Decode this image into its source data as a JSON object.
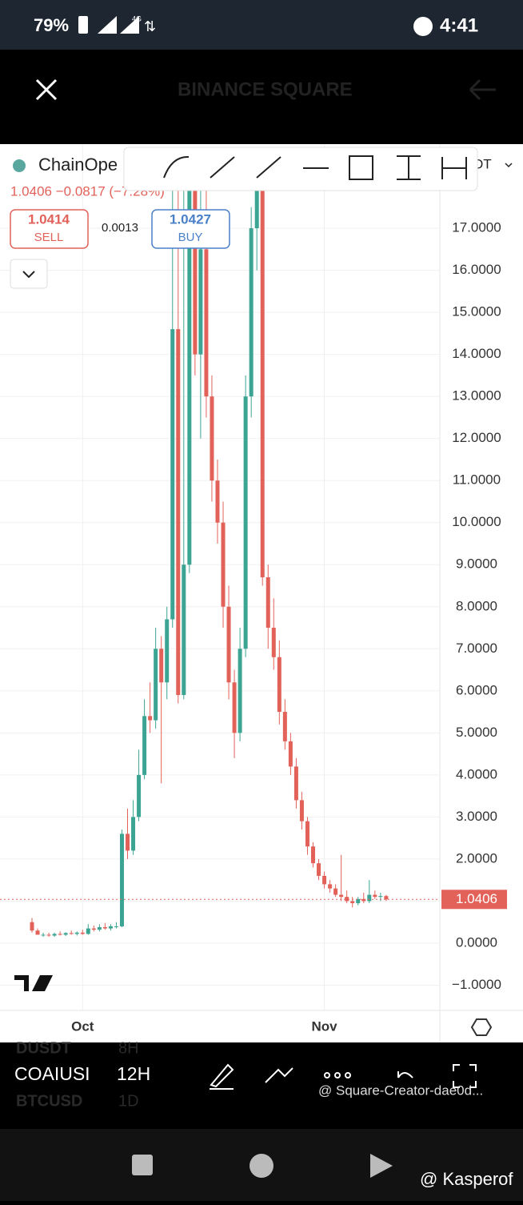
{
  "status_bar": {
    "battery": "79%",
    "network": "4G",
    "time": "4:41"
  },
  "header": {
    "title": "BINANCE SQUARE"
  },
  "symbol": {
    "name": "ChainOpe",
    "pair_suffix": "DT",
    "quote": "1.0406 −0.0817 (−7.28%)",
    "sell_price": "1.0414",
    "sell_label": "SELL",
    "spread": "0.0013",
    "buy_price": "1.0427",
    "buy_label": "BUY"
  },
  "chart_data": {
    "type": "candlestick",
    "categories": [
      null,
      null,
      null,
      null,
      null,
      null,
      null,
      null,
      null,
      "Oct",
      null,
      null,
      null,
      null,
      null,
      null,
      null,
      null,
      null,
      null,
      null,
      null,
      null,
      null,
      null,
      null,
      null,
      null,
      null,
      null,
      null,
      null,
      null,
      null,
      null,
      null,
      null,
      null,
      null,
      null,
      null,
      null,
      null,
      null,
      null,
      null,
      null,
      null,
      null,
      null,
      null,
      null,
      "Nov",
      null,
      null,
      null,
      null,
      null,
      null,
      null,
      null,
      null,
      null,
      null
    ],
    "open": [
      0.5,
      0.3,
      0.2,
      0.2,
      0.18,
      0.22,
      0.2,
      0.24,
      0.22,
      0.25,
      0.22,
      0.35,
      0.32,
      0.38,
      0.35,
      0.4,
      0.4,
      2.6,
      2.2,
      3.0,
      4.0,
      5.4,
      5.3,
      7.0,
      6.2,
      7.7,
      14.6,
      5.9,
      9.0,
      18.0,
      14.0,
      16.5,
      13.0,
      11.0,
      10.0,
      8.0,
      6.2,
      5.0,
      7.0,
      13.0,
      17.0,
      18.5,
      8.7,
      7.5,
      6.8,
      5.5,
      4.8,
      4.2,
      3.4,
      2.9,
      2.3,
      1.9,
      1.6,
      1.4,
      1.3,
      1.15,
      1.1,
      1.0,
      0.95,
      1.05,
      1.0,
      1.15,
      1.1,
      1.12
    ],
    "high": [
      0.6,
      0.35,
      0.25,
      0.25,
      0.25,
      0.28,
      0.26,
      0.3,
      0.28,
      0.32,
      0.45,
      0.42,
      0.45,
      0.48,
      0.45,
      0.5,
      2.7,
      3.2,
      3.4,
      4.6,
      5.8,
      6.2,
      7.5,
      7.3,
      8.0,
      18.5,
      18.6,
      18.5,
      18.7,
      18.6,
      18.2,
      18.0,
      13.5,
      11.5,
      10.5,
      8.5,
      6.5,
      7.5,
      13.5,
      17.5,
      18.7,
      18.8,
      9.0,
      8.2,
      7.2,
      5.8,
      5.0,
      4.4,
      3.6,
      3.0,
      2.4,
      2.0,
      1.7,
      1.5,
      1.4,
      2.1,
      1.25,
      1.1,
      1.1,
      1.2,
      1.5,
      1.25,
      1.2,
      1.15
    ],
    "low": [
      0.25,
      0.2,
      0.15,
      0.15,
      0.15,
      0.18,
      0.17,
      0.2,
      0.18,
      0.2,
      0.2,
      0.28,
      0.28,
      0.32,
      0.3,
      0.35,
      0.38,
      2.0,
      2.1,
      2.9,
      3.9,
      5.0,
      5.1,
      3.8,
      5.8,
      7.5,
      5.7,
      5.8,
      8.8,
      13.5,
      12.0,
      12.5,
      10.5,
      9.5,
      7.5,
      5.8,
      4.4,
      4.8,
      6.8,
      12.5,
      16.0,
      8.5,
      7.0,
      6.5,
      5.2,
      4.6,
      4.0,
      3.2,
      2.7,
      2.1,
      1.8,
      1.5,
      1.3,
      1.2,
      1.1,
      1.0,
      0.95,
      0.85,
      0.9,
      0.95,
      0.95,
      1.05,
      1.0,
      1.0
    ],
    "close": [
      0.3,
      0.2,
      0.2,
      0.18,
      0.22,
      0.2,
      0.24,
      0.22,
      0.25,
      0.22,
      0.35,
      0.32,
      0.38,
      0.35,
      0.4,
      0.4,
      2.6,
      2.2,
      3.0,
      4.0,
      5.4,
      5.3,
      7.0,
      6.2,
      7.7,
      14.6,
      5.9,
      9.0,
      18.0,
      14.0,
      16.5,
      13.0,
      11.0,
      10.0,
      8.0,
      6.2,
      5.0,
      7.0,
      13.0,
      17.0,
      18.5,
      8.7,
      7.5,
      6.8,
      5.5,
      4.8,
      4.2,
      3.4,
      2.9,
      2.3,
      1.9,
      1.6,
      1.4,
      1.3,
      1.15,
      1.1,
      1.0,
      0.95,
      1.05,
      1.0,
      1.15,
      1.1,
      1.12,
      1.0406
    ],
    "up_color": "#3ba493",
    "down_color": "#e2625a",
    "ylim": [
      -1.6,
      19
    ],
    "yticks": [
      {
        "value": -1,
        "label": "−1.0000"
      },
      {
        "value": 0,
        "label": "0.0000"
      },
      {
        "value": 1,
        "label": "1.0000"
      },
      {
        "value": 2,
        "label": "2.0000"
      },
      {
        "value": 3,
        "label": "3.0000"
      },
      {
        "value": 4,
        "label": "4.0000"
      },
      {
        "value": 5,
        "label": "5.0000"
      },
      {
        "value": 6,
        "label": "6.0000"
      },
      {
        "value": 7,
        "label": "7.0000"
      },
      {
        "value": 8,
        "label": "8.0000"
      },
      {
        "value": 9,
        "label": "9.0000"
      },
      {
        "value": 10,
        "label": "10.0000"
      },
      {
        "value": 11,
        "label": "11.0000"
      },
      {
        "value": 12,
        "label": "12.0000"
      },
      {
        "value": 13,
        "label": "13.0000"
      },
      {
        "value": 14,
        "label": "14.0000"
      },
      {
        "value": 15,
        "label": "15.0000"
      },
      {
        "value": 16,
        "label": "16.0000"
      },
      {
        "value": 17,
        "label": "17.0000"
      }
    ],
    "last_price": {
      "value": 1.0406,
      "label": "1.0406"
    },
    "grid": true
  },
  "toolbar": {
    "symbol": "COAIUSI",
    "interval": "12H",
    "prev_symbol": "DUSDT",
    "prev_interval": "8H",
    "next_symbol": "BTCUSD",
    "next_interval": "1D"
  },
  "watermarks": {
    "creator": "@ Square-Creator-dae0d...",
    "author": "@ Kasperof"
  }
}
